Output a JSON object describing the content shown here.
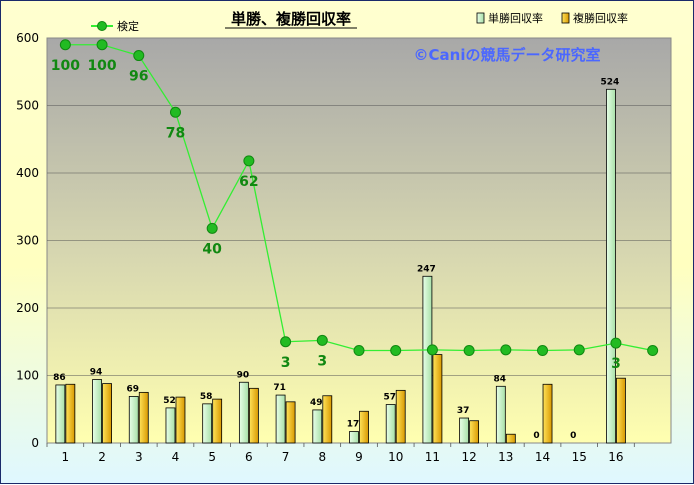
{
  "chart_data": {
    "type": "bar+line",
    "title": "単勝、複勝回収率",
    "watermark": "©Caniの競馬データ研究室",
    "categories": [
      "1",
      "2",
      "3",
      "4",
      "5",
      "6",
      "7",
      "8",
      "9",
      "10",
      "11",
      "12",
      "13",
      "14",
      "15",
      "16",
      ""
    ],
    "ylim": [
      0,
      600
    ],
    "yticks": [
      0,
      100,
      200,
      300,
      400,
      500,
      600
    ],
    "grid": true,
    "legend_position": "top-right",
    "series": [
      {
        "name": "単勝回収率",
        "kind": "bar",
        "color": "#ccf5cc",
        "values": [
          86,
          94,
          69,
          52,
          58,
          90,
          71,
          49,
          17,
          57,
          247,
          37,
          84,
          0,
          0,
          524,
          null
        ],
        "labels": [
          "86",
          "94",
          "69",
          "52",
          "58",
          "90",
          "71",
          "49",
          "17",
          "57",
          "247",
          "37",
          "84",
          "0",
          "0",
          "524",
          ""
        ]
      },
      {
        "name": "複勝回収率",
        "kind": "bar",
        "color": "#ffd02a",
        "values": [
          87,
          88,
          75,
          68,
          65,
          81,
          61,
          70,
          47,
          78,
          131,
          33,
          13,
          87,
          0,
          96,
          null
        ]
      },
      {
        "name": "検定",
        "kind": "line",
        "color": "#33ee33",
        "values": [
          590,
          590,
          574,
          490,
          318,
          418,
          150,
          152,
          137,
          137,
          138,
          137,
          138,
          137,
          138,
          148,
          137
        ],
        "labels": [
          "100",
          "100",
          "96",
          "78",
          "40",
          "62",
          "3",
          "3",
          "",
          "",
          "",
          "",
          "",
          "",
          "",
          "3",
          ""
        ]
      }
    ]
  }
}
